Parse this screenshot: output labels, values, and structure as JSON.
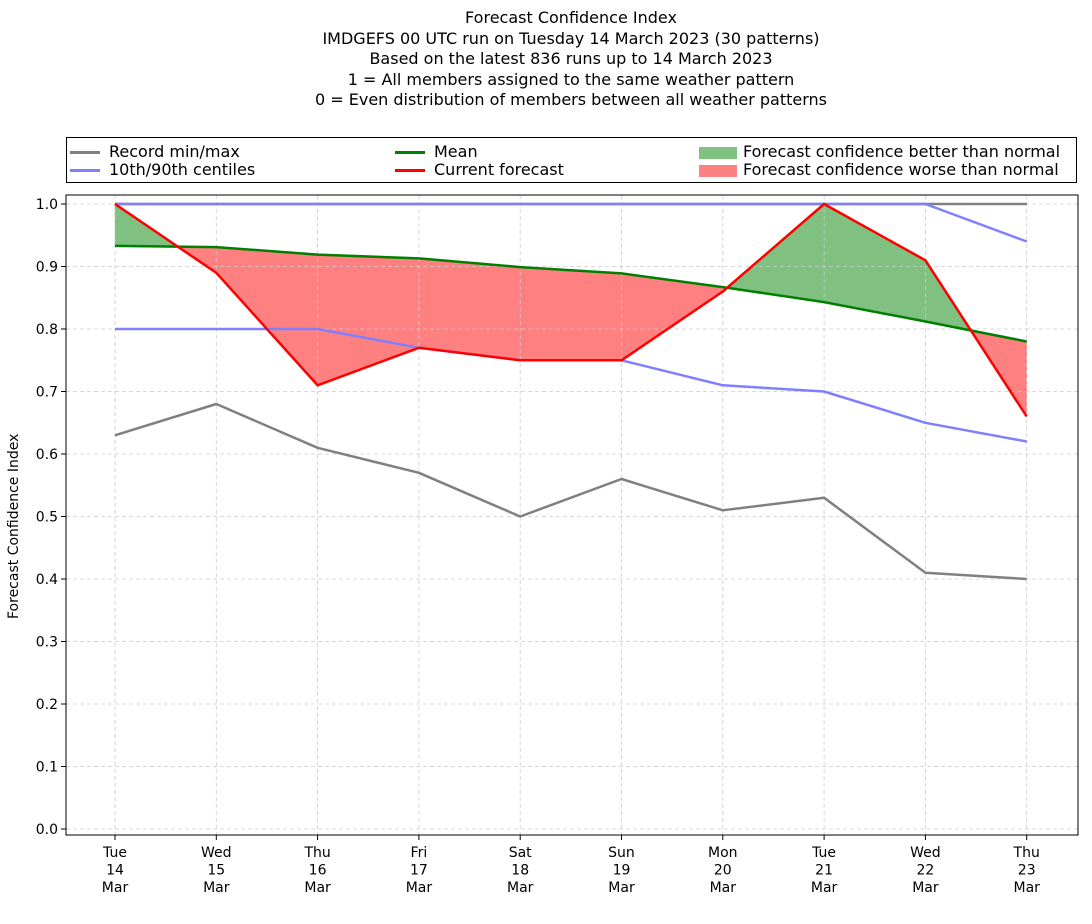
{
  "title_lines": [
    "Forecast Confidence Index",
    "IMDGEFS 00 UTC run on Tuesday 14 March 2023 (30 patterns)",
    "Based on the latest 836 runs up to 14 March 2023",
    "1 = All members assigned to the same weather pattern",
    "0 = Even distribution of members between all weather patterns"
  ],
  "legend": {
    "record": "Record min/max",
    "centiles": "10th/90th centiles",
    "mean": "Mean",
    "current": "Current forecast",
    "better": "Forecast confidence better than normal",
    "worse": "Forecast confidence worse than normal"
  },
  "colors": {
    "record": "#808080",
    "centiles": "#8080ff",
    "mean": "#008000",
    "current": "#ff0000",
    "better": "#80c080",
    "worse": "#ff8080",
    "grid": "#cccccc"
  },
  "chart_data": {
    "type": "line",
    "title": "Forecast Confidence Index",
    "ylabel": "Forecast Confidence Index",
    "xlabel": "",
    "ylim": [
      0.0,
      1.0
    ],
    "yticks": [
      "0.0",
      "0.1",
      "0.2",
      "0.3",
      "0.4",
      "0.5",
      "0.6",
      "0.7",
      "0.8",
      "0.9",
      "1.0"
    ],
    "categories": [
      [
        "Tue",
        "14",
        "Mar"
      ],
      [
        "Wed",
        "15",
        "Mar"
      ],
      [
        "Thu",
        "16",
        "Mar"
      ],
      [
        "Fri",
        "17",
        "Mar"
      ],
      [
        "Sat",
        "18",
        "Mar"
      ],
      [
        "Sun",
        "19",
        "Mar"
      ],
      [
        "Mon",
        "20",
        "Mar"
      ],
      [
        "Tue",
        "21",
        "Mar"
      ],
      [
        "Wed",
        "22",
        "Mar"
      ],
      [
        "Thu",
        "23",
        "Mar"
      ]
    ],
    "grid": true,
    "legend_position": "top",
    "series": [
      {
        "name": "Record min/max",
        "key": "record_max",
        "values": [
          1.0,
          1.0,
          1.0,
          1.0,
          1.0,
          1.0,
          1.0,
          1.0,
          1.0,
          1.0
        ]
      },
      {
        "name": "Record min/max",
        "key": "record_min",
        "values": [
          0.63,
          0.68,
          0.61,
          0.57,
          0.5,
          0.56,
          0.51,
          0.53,
          0.41,
          0.4
        ]
      },
      {
        "name": "10th/90th centiles",
        "key": "p90",
        "values": [
          1.0,
          1.0,
          1.0,
          1.0,
          1.0,
          1.0,
          1.0,
          1.0,
          1.0,
          0.94
        ]
      },
      {
        "name": "10th/90th centiles",
        "key": "p10",
        "values": [
          0.8,
          0.8,
          0.8,
          0.77,
          0.75,
          0.75,
          0.71,
          0.7,
          0.65,
          0.62
        ]
      },
      {
        "name": "Mean",
        "key": "mean",
        "values": [
          0.933,
          0.931,
          0.919,
          0.913,
          0.899,
          0.889,
          0.867,
          0.843,
          0.812,
          0.78
        ]
      },
      {
        "name": "Current forecast",
        "key": "current",
        "values": [
          1.0,
          0.89,
          0.71,
          0.77,
          0.75,
          0.75,
          0.86,
          1.0,
          0.91,
          0.66
        ]
      }
    ]
  }
}
